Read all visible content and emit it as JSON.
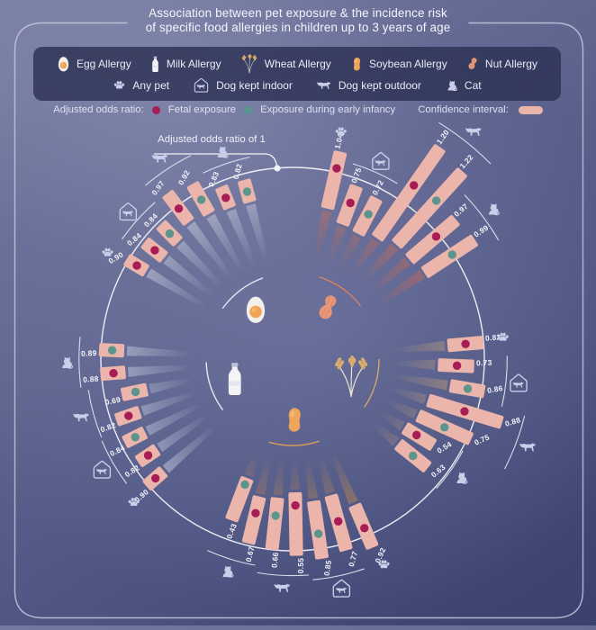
{
  "title": {
    "line1": "Association between pet exposure & the incidence risk",
    "line2": "of specific food allergies in children up to 3 years of age"
  },
  "legend": {
    "allergies": [
      {
        "label": "Egg Allergy"
      },
      {
        "label": "Milk Allergy"
      },
      {
        "label": "Wheat Allergy"
      },
      {
        "label": "Soybean Allergy"
      },
      {
        "label": "Nut Allergy"
      }
    ],
    "pets": [
      {
        "label": "Any pet"
      },
      {
        "label": "Dog kept indoor"
      },
      {
        "label": "Dog kept outdoor"
      },
      {
        "label": "Cat"
      }
    ],
    "adjusted_or_label": "Adjusted odds ratio:",
    "ci_label": "Confidence interval:"
  },
  "colors": {
    "ci_bar": "#ecb5ac",
    "pet_icon": "#c9cee9",
    "baseline_line": "#f2f3f9",
    "label_text": "#f4f3f9"
  },
  "chart_data": {
    "type": "bar",
    "layout": "radial",
    "baseline": {
      "value": 1,
      "label": "Adjusted odds ratio of 1"
    },
    "legend_position": "top",
    "exposure_series": [
      {
        "id": "fetal",
        "label": "Fetal exposure",
        "color": "#a81d56"
      },
      {
        "id": "early_infancy",
        "label": "Exposure during early infancy",
        "color": "#5c948e"
      }
    ],
    "groups": [
      {
        "food": "Nut Allergy",
        "icon": "peanut-icon",
        "start_angle": 13,
        "streak_color": "#e06a45",
        "inner_arc_color": "#e0815c",
        "bars": [
          {
            "pet": "Any pet",
            "exposure": "fetal",
            "or": 1.04,
            "ci": [
              0.63,
              1.21
            ]
          },
          {
            "pet": "Dog kept indoor",
            "exposure": "fetal",
            "or": 0.75,
            "ci": [
              0.52,
              0.93
            ]
          },
          {
            "pet": "Dog kept indoor",
            "exposure": "early_infancy",
            "or": 0.72,
            "ci": [
              0.5,
              0.9
            ]
          },
          {
            "pet": "Dog kept outdoor",
            "exposure": "fetal",
            "or": 1.2,
            "ci": [
              0.56,
              1.66
            ]
          },
          {
            "pet": "Dog kept outdoor",
            "exposure": "early_infancy",
            "or": 1.22,
            "ci": [
              0.63,
              1.61
            ]
          },
          {
            "pet": "Cat",
            "exposure": "fetal",
            "or": 0.97,
            "ci": [
              0.62,
              1.23
            ]
          },
          {
            "pet": "Cat",
            "exposure": "early_infancy",
            "or": 0.99,
            "ci": [
              0.66,
              1.26
            ]
          }
        ]
      },
      {
        "food": "Wheat Allergy",
        "icon": "wheat-icon",
        "start_angle": 85,
        "streak_color": "#d2a878",
        "inner_arc_color": "#d9a96b",
        "bars": [
          {
            "pet": "Any pet",
            "exposure": "fetal",
            "or": 0.82,
            "ci": [
              0.64,
              1.0
            ]
          },
          {
            "pet": "Dog kept indoor",
            "exposure": "fetal",
            "or": 0.73,
            "ci": [
              0.54,
              0.9
            ]
          },
          {
            "pet": "Dog kept indoor",
            "exposure": "early_infancy",
            "or": 0.86,
            "ci": [
              0.68,
              1.03
            ]
          },
          {
            "pet": "Dog kept outdoor",
            "exposure": "fetal",
            "or": 0.88,
            "ci": [
              0.5,
              1.27
            ]
          },
          {
            "pet": "Dog kept outdoor",
            "exposure": "early_infancy",
            "or": 0.75,
            "ci": [
              0.46,
              1.04
            ]
          },
          {
            "pet": "Cat",
            "exposure": "fetal",
            "or": 0.54,
            "ci": [
              0.4,
              0.74
            ]
          },
          {
            "pet": "Cat",
            "exposure": "early_infancy",
            "or": 0.63,
            "ci": [
              0.44,
              0.82
            ]
          }
        ]
      },
      {
        "food": "Soybean Allergy",
        "icon": "soybean-icon",
        "start_angle": 157,
        "streak_color": "#d99440",
        "inner_arc_color": "#e6a051",
        "bars": [
          {
            "pet": "Any pet",
            "exposure": "fetal",
            "or": 0.92,
            "ci": [
              0.67,
              1.13
            ]
          },
          {
            "pet": "Dog kept indoor",
            "exposure": "fetal",
            "or": 0.77,
            "ci": [
              0.5,
              1.07
            ]
          },
          {
            "pet": "Dog kept indoor",
            "exposure": "early_infancy",
            "or": 0.85,
            "ci": [
              0.52,
              1.1
            ]
          },
          {
            "pet": "Dog kept outdoor",
            "exposure": "fetal",
            "or": 0.55,
            "ci": [
              0.42,
              1.05
            ]
          },
          {
            "pet": "Dog kept outdoor",
            "exposure": "early_infancy",
            "or": 0.66,
            "ci": [
              0.48,
              1.0
            ]
          },
          {
            "pet": "Cat",
            "exposure": "fetal",
            "or": 0.67,
            "ci": [
              0.5,
              0.98
            ]
          },
          {
            "pet": "Cat",
            "exposure": "early_infancy",
            "or": 0.43,
            "ci": [
              0.36,
              0.81
            ]
          }
        ]
      },
      {
        "food": "Milk Allergy",
        "icon": "milk-icon",
        "start_angle": 229,
        "streak_color": "#cdd3e2",
        "inner_arc_color": "#eef0f6",
        "bars": [
          {
            "pet": "Any pet",
            "exposure": "fetal",
            "or": 0.9,
            "ci": [
              0.79,
              1.02
            ]
          },
          {
            "pet": "Dog kept indoor",
            "exposure": "fetal",
            "or": 0.82,
            "ci": [
              0.71,
              0.94
            ]
          },
          {
            "pet": "Dog kept indoor",
            "exposure": "early_infancy",
            "or": 0.84,
            "ci": [
              0.73,
              0.96
            ]
          },
          {
            "pet": "Dog kept outdoor",
            "exposure": "fetal",
            "or": 0.82,
            "ci": [
              0.7,
              0.95
            ]
          },
          {
            "pet": "Dog kept outdoor",
            "exposure": "early_infancy",
            "or": 0.69,
            "ci": [
              0.57,
              0.83
            ]
          },
          {
            "pet": "Cat",
            "exposure": "fetal",
            "or": 0.88,
            "ci": [
              0.76,
              1.01
            ]
          },
          {
            "pet": "Cat",
            "exposure": "early_infancy",
            "or": 0.89,
            "ci": [
              0.77,
              1.02
            ]
          }
        ]
      },
      {
        "food": "Egg Allergy",
        "icon": "egg-icon",
        "start_angle": 301,
        "streak_color": "#cdd3e2",
        "inner_arc_color": "#eef0f6",
        "bars": [
          {
            "pet": "Any pet",
            "exposure": "fetal",
            "or": 0.9,
            "ci": [
              0.79,
              1.02
            ]
          },
          {
            "pet": "Dog kept indoor",
            "exposure": "fetal",
            "or": 0.84,
            "ci": [
              0.72,
              0.97
            ]
          },
          {
            "pet": "Dog kept indoor",
            "exposure": "early_infancy",
            "or": 0.84,
            "ci": [
              0.72,
              0.97
            ]
          },
          {
            "pet": "Dog kept outdoor",
            "exposure": "fetal",
            "or": 0.97,
            "ci": [
              0.8,
              1.16
            ]
          },
          {
            "pet": "Dog kept outdoor",
            "exposure": "early_infancy",
            "or": 0.92,
            "ci": [
              0.76,
              1.1
            ]
          },
          {
            "pet": "Cat",
            "exposure": "fetal",
            "or": 0.83,
            "ci": [
              0.72,
              0.95
            ]
          },
          {
            "pet": "Cat",
            "exposure": "early_infancy",
            "or": 0.82,
            "ci": [
              0.71,
              0.94
            ]
          }
        ]
      }
    ]
  }
}
